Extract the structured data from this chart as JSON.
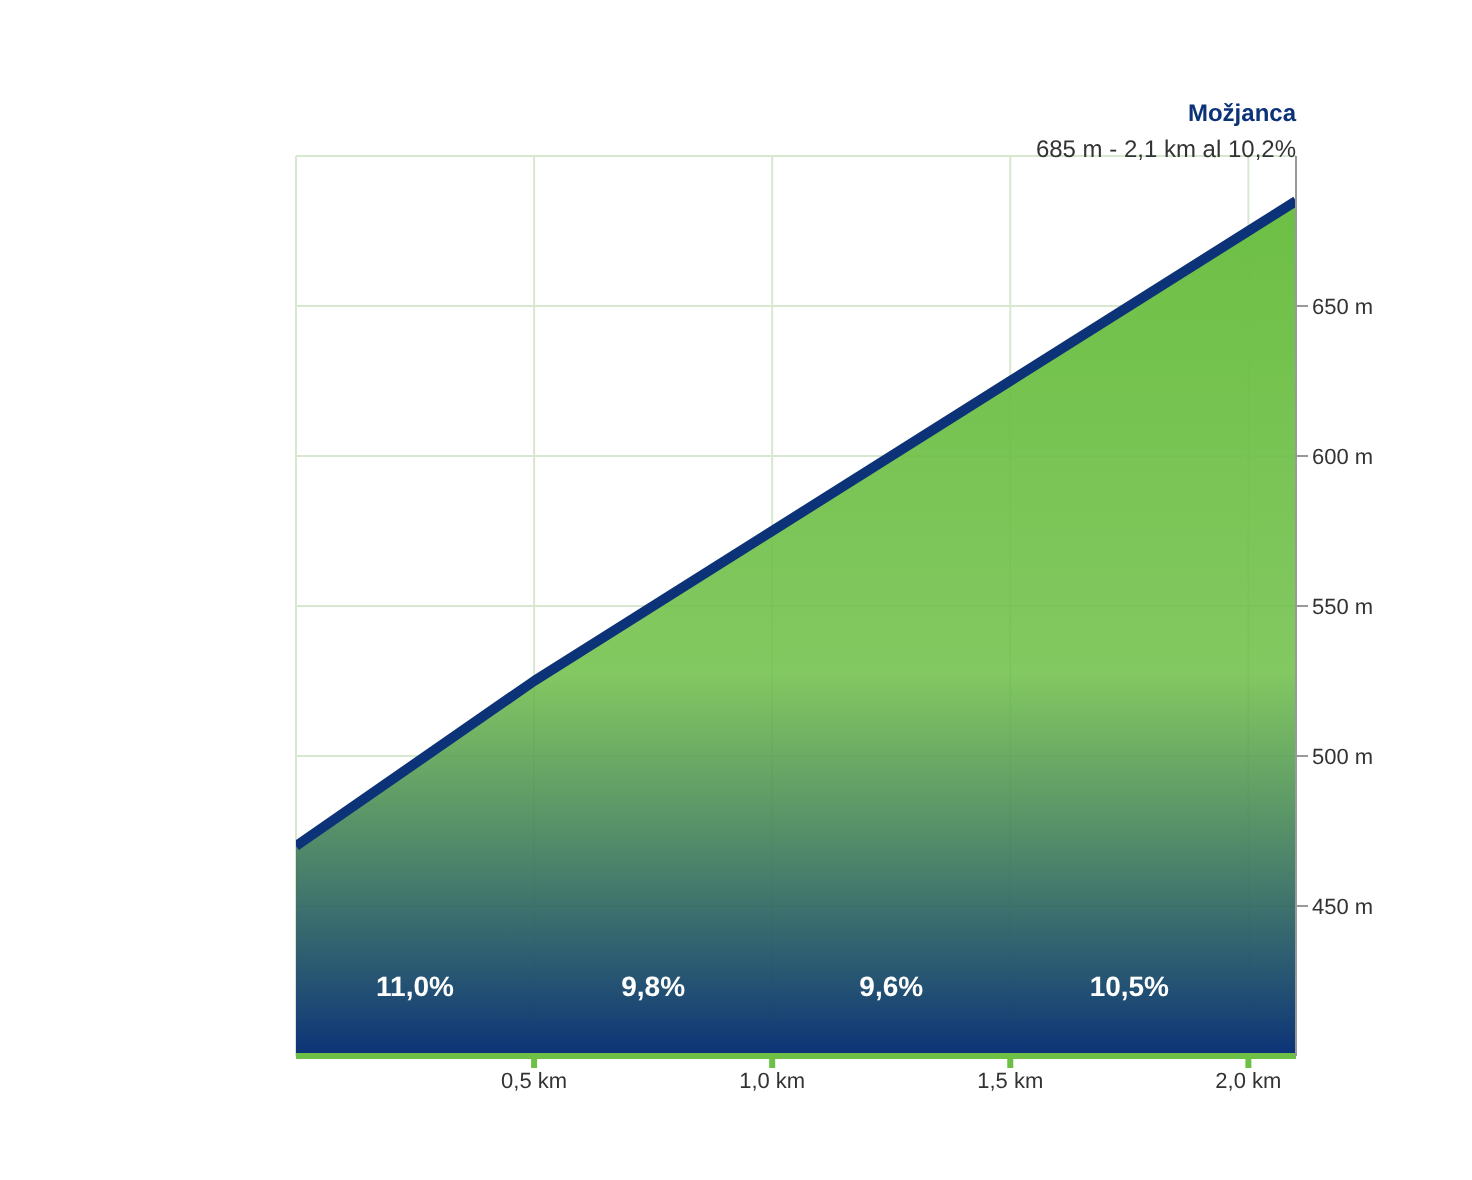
{
  "chart_data": {
    "type": "area",
    "x": [
      0,
      0.5,
      1.0,
      1.5,
      2.0,
      2.1
    ],
    "series": [
      {
        "color": "#6dbf45",
        "values": [
          470,
          525,
          575,
          625,
          675,
          685
        ]
      }
    ],
    "xlim": [
      0,
      2.1
    ],
    "xticks": [
      {
        "value": 0.5,
        "label": "0,5 km"
      },
      {
        "value": 1.0,
        "label": "1,0 km"
      },
      {
        "value": 1.5,
        "label": "1,5 km"
      },
      {
        "value": 2.0,
        "label": "2,0 km"
      }
    ],
    "ylim": [
      400,
      700
    ],
    "yticks": [
      {
        "value": 450,
        "label": "450 m"
      },
      {
        "value": 500,
        "label": "500 m"
      },
      {
        "value": 550,
        "label": "550 m"
      },
      {
        "value": 600,
        "label": "600 m"
      },
      {
        "value": 650,
        "label": "650 m"
      }
    ],
    "grid": true,
    "annotations": [
      "Možjanca",
      {
        "text": "685 m - 2,1 km al 10,2%",
        "x": 2.1,
        "y": 685
      },
      "11,0%",
      "9,8%",
      "9,6%",
      "10,5%"
    ]
  }
}
